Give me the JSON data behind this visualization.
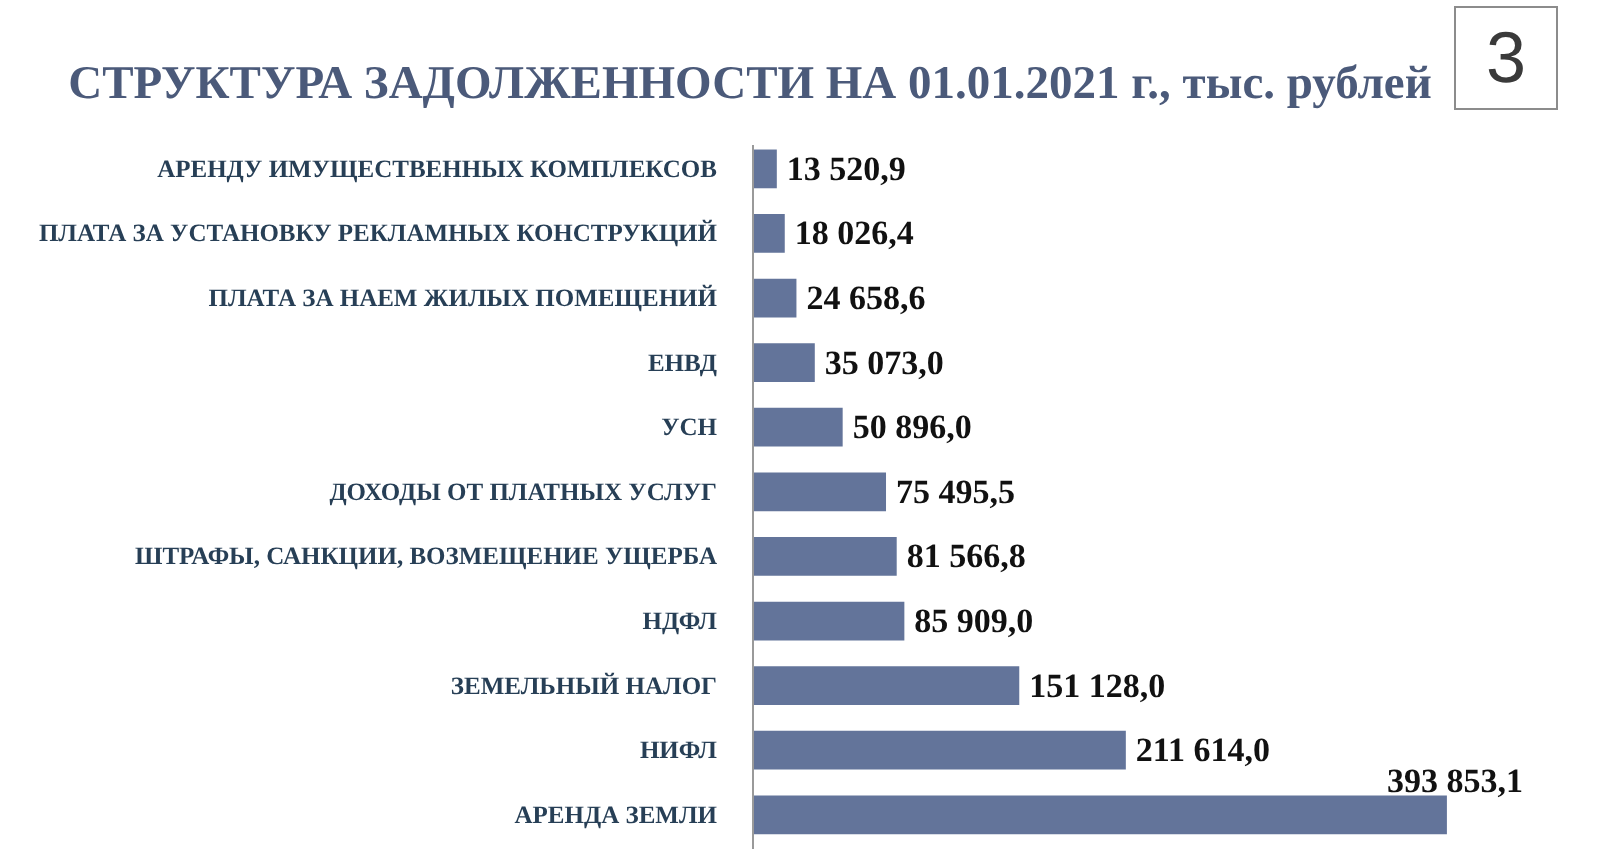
{
  "chart_data": {
    "type": "bar",
    "orientation": "horizontal",
    "title": "СТРУКТУРА ЗАДОЛЖЕННОСТИ НА 01.01.2021 г., тыс. рублей",
    "annotations": [
      "3"
    ],
    "categories": [
      "АРЕНДУ ИМУЩЕСТВЕННЫХ КОМПЛЕКСОВ",
      "ПЛАТА ЗА УСТАНОВКУ РЕКЛАМНЫХ КОНСТРУКЦИЙ",
      "ПЛАТА ЗА НАЕМ ЖИЛЫХ ПОМЕЩЕНИЙ",
      "ЕНВД",
      "УСН",
      "ДОХОДЫ ОТ ПЛАТНЫХ УСЛУГ",
      "ШТРАФЫ, САНКЦИИ, ВОЗМЕЩЕНИЕ УЩЕРБА",
      "НДФЛ",
      "ЗЕМЕЛЬНЫЙ НАЛОГ",
      "НИФЛ",
      "АРЕНДА ЗЕМЛИ"
    ],
    "values": [
      13520.9,
      18026.4,
      24658.6,
      35073.0,
      50896.0,
      75495.5,
      81566.8,
      85909.0,
      151128.0,
      211614.0,
      393853.1
    ],
    "value_labels": [
      "13 520,9",
      "18 026,4",
      "24 658,6",
      "35 073,0",
      "50 896,0",
      "75 495,5",
      "81 566,8",
      "85 909,0",
      "151 128,0",
      "211 614,0",
      "393 853,1"
    ],
    "color": "#63749a",
    "tick_labels": "y"
  }
}
